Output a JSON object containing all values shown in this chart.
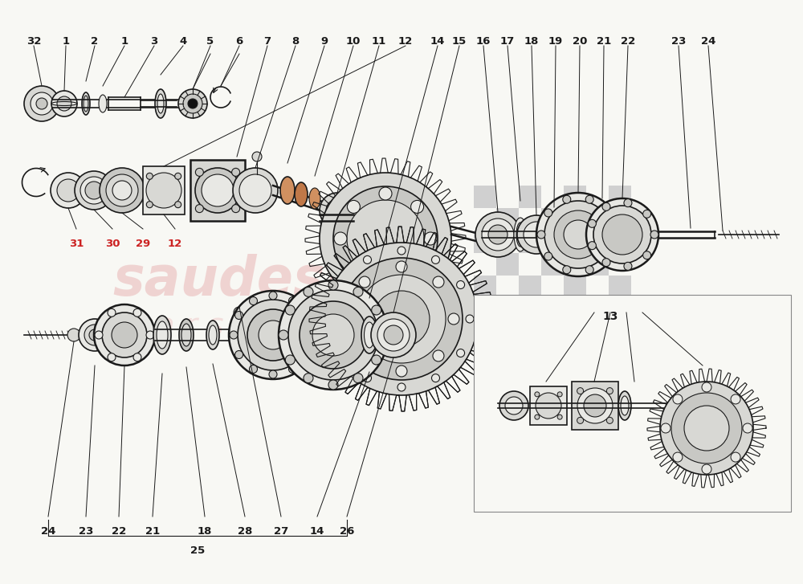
{
  "bg_color": "#f8f8f4",
  "line_color": "#1a1a1a",
  "red_color": "#cc2222",
  "gray_fill": "#e8e8e4",
  "gray_mid": "#d8d8d4",
  "gray_dark": "#c8c8c4",
  "gray_darker": "#b8b8b4",
  "orange_fill": "#c87030",
  "watermark_color": "#e8b0b0",
  "checker_color": "#d0d0d0",
  "top_labels_left": [
    [
      "32",
      0.042
    ],
    [
      "1",
      0.082
    ],
    [
      "2",
      0.118
    ],
    [
      "1",
      0.155
    ],
    [
      "3",
      0.192
    ],
    [
      "4",
      0.228
    ],
    [
      "5",
      0.262
    ],
    [
      "6",
      0.298
    ],
    [
      "7",
      0.333
    ],
    [
      "8",
      0.368
    ],
    [
      "9",
      0.404
    ],
    [
      "10",
      0.44
    ],
    [
      "11",
      0.472
    ],
    [
      "12",
      0.505
    ]
  ],
  "top_labels_right": [
    [
      "14",
      0.545
    ],
    [
      "15",
      0.572
    ],
    [
      "16",
      0.602
    ],
    [
      "17",
      0.632
    ],
    [
      "18",
      0.662
    ],
    [
      "19",
      0.692
    ],
    [
      "20",
      0.722
    ],
    [
      "21",
      0.752
    ],
    [
      "22",
      0.782
    ],
    [
      "23",
      0.845
    ],
    [
      "24",
      0.882
    ]
  ],
  "bottom_labels": [
    [
      "24",
      0.06
    ],
    [
      "23",
      0.107
    ],
    [
      "22",
      0.148
    ],
    [
      "21",
      0.19
    ],
    [
      "18",
      0.255
    ],
    [
      "28",
      0.305
    ],
    [
      "27",
      0.35
    ],
    [
      "14",
      0.395
    ],
    [
      "26",
      0.432
    ]
  ],
  "red_labels": [
    [
      "31",
      0.095
    ],
    [
      "30",
      0.14
    ],
    [
      "29",
      0.178
    ],
    [
      "12",
      0.218
    ]
  ]
}
